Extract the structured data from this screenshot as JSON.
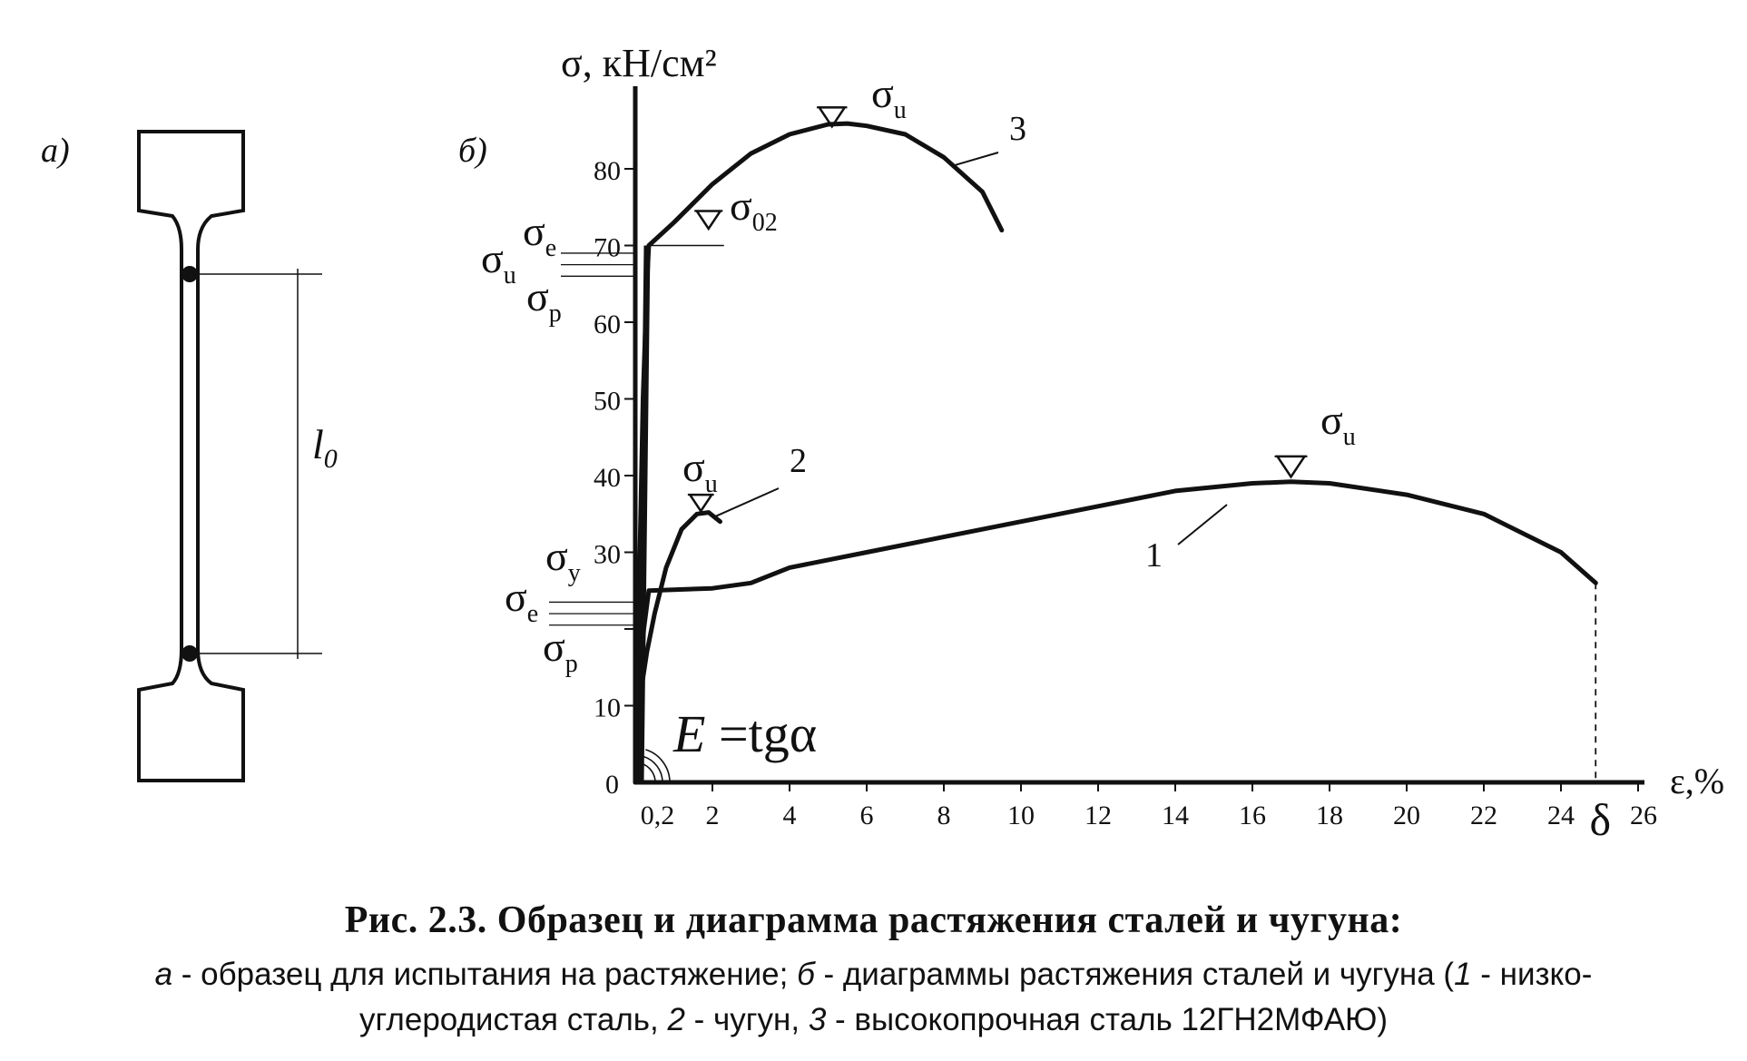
{
  "panel_a": {
    "label": "а)",
    "gauge_label_main": "l",
    "gauge_label_sub": "0"
  },
  "panel_b": {
    "label": "б)"
  },
  "chart_data": {
    "type": "line",
    "ylabel": "σ, кН/см²",
    "xlabel": "ε,%",
    "xlim": [
      0,
      26
    ],
    "ylim": [
      0,
      90
    ],
    "y_ticks": [
      10,
      20,
      30,
      40,
      50,
      60,
      70,
      80
    ],
    "y_tick_labels": [
      "10",
      "",
      "30",
      "40",
      "50",
      "60",
      "70",
      "80"
    ],
    "x_ticks": [
      2,
      4,
      6,
      8,
      10,
      12,
      14,
      16,
      18,
      20,
      22,
      24,
      26
    ],
    "x_tick_labels": [
      "2",
      "4",
      "6",
      "8",
      "10",
      "12",
      "14",
      "16",
      "18",
      "20",
      "22",
      "24",
      "26"
    ],
    "origin_label": "0",
    "offset_tick_label": "0,2",
    "elongation_label": "δ",
    "formula": {
      "main": "E",
      "rest": " =tg",
      "greek": "α"
    },
    "series": [
      {
        "name": "1",
        "points": [
          [
            0,
            0
          ],
          [
            0.1,
            11
          ],
          [
            0.22,
            20
          ],
          [
            0.35,
            25
          ],
          [
            2,
            25.3
          ],
          [
            3,
            26
          ],
          [
            4,
            28
          ],
          [
            6,
            30
          ],
          [
            8,
            32
          ],
          [
            10,
            34
          ],
          [
            12,
            36
          ],
          [
            14,
            38
          ],
          [
            16,
            39
          ],
          [
            17,
            39.2
          ],
          [
            18,
            39
          ],
          [
            20,
            37.5
          ],
          [
            22,
            35
          ],
          [
            24,
            30
          ],
          [
            24.9,
            26
          ]
        ]
      },
      {
        "name": "2",
        "points": [
          [
            0,
            0
          ],
          [
            0.15,
            12
          ],
          [
            0.3,
            17
          ],
          [
            0.5,
            22
          ],
          [
            0.8,
            28
          ],
          [
            1.2,
            33
          ],
          [
            1.6,
            35
          ],
          [
            1.9,
            35.2
          ],
          [
            2.2,
            34
          ]
        ]
      },
      {
        "name": "3",
        "points": [
          [
            0,
            0
          ],
          [
            0.2,
            50
          ],
          [
            0.3,
            65
          ],
          [
            0.35,
            70
          ],
          [
            1,
            73
          ],
          [
            2,
            78
          ],
          [
            3,
            82
          ],
          [
            4,
            84.5
          ],
          [
            5,
            85.8
          ],
          [
            5.5,
            85.9
          ],
          [
            6,
            85.6
          ],
          [
            7,
            84.5
          ],
          [
            8,
            81.5
          ],
          [
            9,
            77
          ],
          [
            9.5,
            72
          ]
        ]
      }
    ],
    "series_labels": [
      "1",
      "2",
      "3"
    ],
    "annotations": {
      "c3_ultimate": "σ|u",
      "c3_proof": "σ|02",
      "c3_elastic": "σ|e",
      "c3_ultimate_left": "σ|u",
      "c3_proportional": "σ|p",
      "c2_ultimate": "σ|u",
      "c1_ultimate": "σ|u",
      "c1_yield": "σ|y",
      "c1_elastic": "σ|e",
      "c1_proportional": "σ|p"
    }
  },
  "caption": {
    "title": "Рис. 2.3. Образец и диаграмма растяжения сталей и чугуна:",
    "line1": [
      {
        "text": "а",
        "italic": true
      },
      {
        "text": " - образец для испытания на растяжение; ",
        "italic": false
      },
      {
        "text": "б",
        "italic": true
      },
      {
        "text": " - диаграммы растяжения сталей и чугуна (",
        "italic": false
      },
      {
        "text": "1",
        "italic": true
      },
      {
        "text": " - низко-",
        "italic": false
      }
    ],
    "line2": [
      {
        "text": "углеродистая сталь, ",
        "italic": false
      },
      {
        "text": "2",
        "italic": true
      },
      {
        "text": " - чугун, ",
        "italic": false
      },
      {
        "text": "3",
        "italic": true
      },
      {
        "text": " - высокопрочная  сталь 12ГН2МФАЮ)",
        "italic": false
      }
    ]
  }
}
